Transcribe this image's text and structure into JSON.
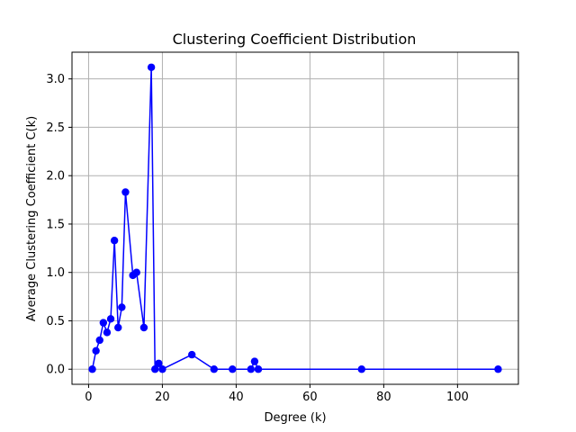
{
  "chart_data": {
    "type": "line",
    "title": "Clustering Coefficient Distribution",
    "xlabel": "Degree (k)",
    "ylabel": "Average Clustering Coefficient C(k)",
    "xlim": [
      -4.5,
      116.5
    ],
    "ylim": [
      -0.156,
      3.276
    ],
    "xticks": [
      0,
      20,
      40,
      60,
      80,
      100
    ],
    "xtick_labels": [
      "0",
      "20",
      "40",
      "60",
      "80",
      "100"
    ],
    "yticks": [
      0.0,
      0.5,
      1.0,
      1.5,
      2.0,
      2.5,
      3.0
    ],
    "ytick_labels": [
      "0.0",
      "0.5",
      "1.0",
      "1.5",
      "2.0",
      "2.5",
      "3.0"
    ],
    "grid": true,
    "series": [
      {
        "color": "#0000ff",
        "marker": "circle",
        "x": [
          1,
          2,
          3,
          4,
          5,
          6,
          7,
          8,
          9,
          10,
          12,
          13,
          15,
          17,
          18,
          19,
          20,
          28,
          34,
          39,
          44,
          45,
          46,
          74,
          111
        ],
        "y": [
          0.0,
          0.19,
          0.3,
          0.48,
          0.38,
          0.52,
          1.33,
          0.43,
          0.64,
          1.83,
          0.97,
          1.0,
          0.43,
          3.12,
          0.0,
          0.06,
          0.0,
          0.15,
          0.0,
          0.0,
          0.0,
          0.08,
          0.0,
          0.0,
          0.0
        ]
      }
    ]
  }
}
